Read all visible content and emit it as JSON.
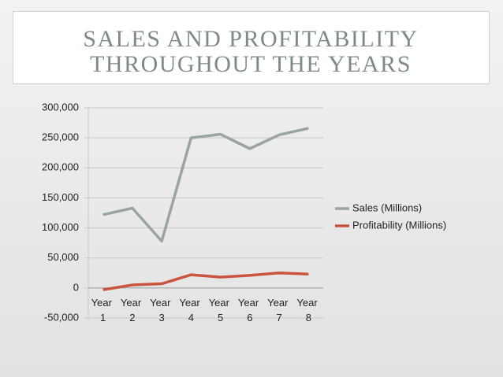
{
  "chart_data": {
    "type": "line",
    "title": [
      "SALES AND PROFITABILITY",
      "THROUGHOUT THE YEARS"
    ],
    "categories": [
      "Year 1",
      "Year 2",
      "Year 3",
      "Year 4",
      "Year 5",
      "Year 6",
      "Year 7",
      "Year 8"
    ],
    "series": [
      {
        "name": "Sales (Millions)",
        "color": "#98a69e",
        "values": [
          122000,
          133000,
          78000,
          250000,
          256000,
          232000,
          255000,
          266000
        ]
      },
      {
        "name": "Profitability (Millions)",
        "color": "#c9553e",
        "values": [
          -3000,
          5000,
          7000,
          22000,
          18000,
          21000,
          25000,
          23000
        ]
      }
    ],
    "ylim": [
      -50000,
      300000
    ],
    "yticks": [
      {
        "value": -50000,
        "label": "-50,000"
      },
      0,
      {
        "value": 50000,
        "label": "50,000"
      },
      {
        "value": 100000,
        "label": "100,000"
      },
      {
        "value": 150000,
        "label": "150,000"
      },
      {
        "value": 200000,
        "label": "200,000"
      },
      {
        "value": 250000,
        "label": "250,000"
      },
      {
        "value": 300000,
        "label": "300,000"
      }
    ],
    "grid": true,
    "legend": "right"
  }
}
